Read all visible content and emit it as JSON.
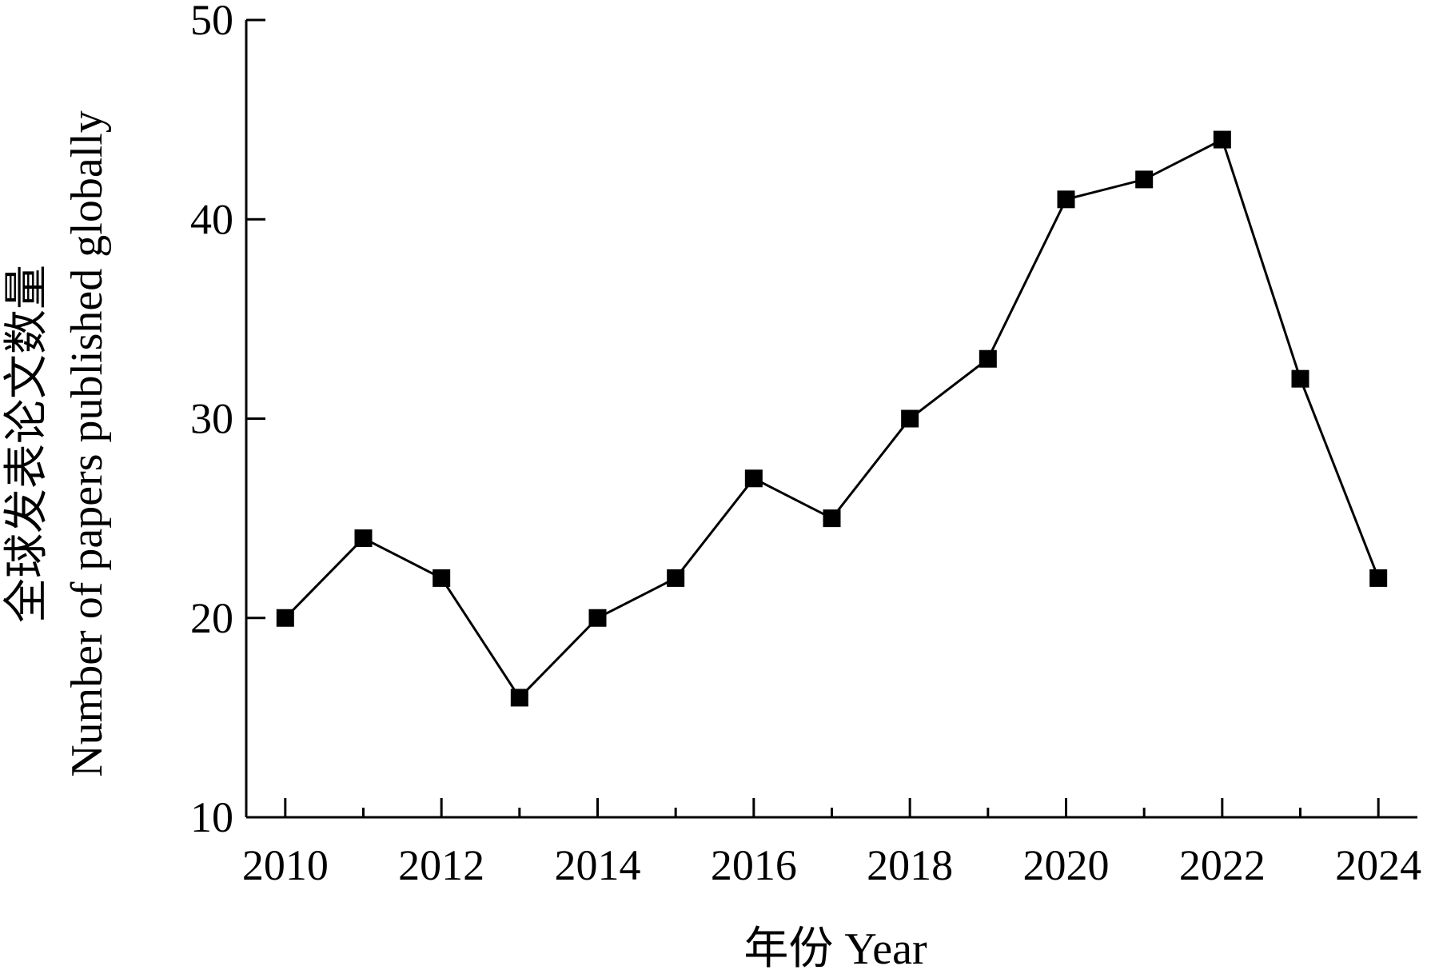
{
  "chart_data": {
    "type": "line",
    "title": "",
    "xlabel": "年份 Year",
    "ylabel_line1": "全球发表论文数量",
    "ylabel_line2": "Number of papers published globally",
    "x": [
      2010,
      2011,
      2012,
      2013,
      2014,
      2015,
      2016,
      2017,
      2018,
      2019,
      2020,
      2021,
      2022,
      2023,
      2024
    ],
    "series": [
      {
        "values": [
          20,
          24,
          22,
          16,
          20,
          22,
          27,
          25,
          30,
          33,
          41,
          42,
          44,
          32,
          22
        ]
      }
    ],
    "xlim": [
      2009.5,
      2024.5
    ],
    "ylim": [
      10,
      50
    ],
    "xticks": [
      2010,
      2012,
      2014,
      2016,
      2018,
      2020,
      2022,
      2024
    ],
    "xticks_minor": [
      2011,
      2013,
      2015,
      2017,
      2019,
      2021,
      2023
    ],
    "yticks": [
      10,
      20,
      30,
      40,
      50
    ],
    "marker": "square",
    "line_color": "#000000",
    "marker_color": "#000000",
    "grid": false,
    "legend": "none"
  }
}
